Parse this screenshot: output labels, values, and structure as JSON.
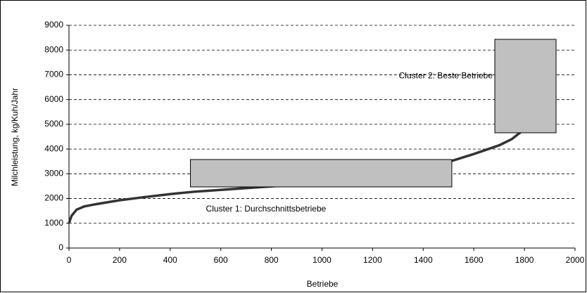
{
  "chart_data": {
    "type": "line",
    "xlabel": "Betriebe",
    "ylabel": "Milchleistung, kg/Kuh/Jahr",
    "x": [
      0,
      10,
      30,
      60,
      100,
      200,
      300,
      400,
      500,
      600,
      700,
      800,
      900,
      1000,
      1100,
      1200,
      1300,
      1400,
      1500,
      1600,
      1700,
      1750,
      1800
    ],
    "series": [
      {
        "color": "#333333",
        "values": [
          1000,
          1300,
          1550,
          1680,
          1760,
          1930,
          2060,
          2180,
          2280,
          2350,
          2420,
          2490,
          2560,
          2640,
          2730,
          2840,
          2980,
          3200,
          3480,
          3800,
          4150,
          4400,
          4800
        ]
      }
    ],
    "regions": [
      {
        "label": "Cluster 1: Durchschnittsbetriebe",
        "x": [
          480,
          1513
        ],
        "y": [
          2470,
          3577
        ],
        "color": "#c0c0c0"
      },
      {
        "label": "Cluster 2: Beste Betriebe",
        "x": [
          1683,
          1925
        ],
        "y": [
          4657,
          8433
        ],
        "color": "#c0c0c0"
      }
    ],
    "xlim": [
      0,
      2000
    ],
    "xticks": [
      0,
      200,
      400,
      600,
      800,
      1000,
      1200,
      1400,
      1600,
      1800,
      2000
    ],
    "ylim": [
      0,
      9000
    ],
    "yticks": [
      0,
      1000,
      2000,
      3000,
      4000,
      5000,
      6000,
      7000,
      8000,
      9000
    ],
    "grid": true
  }
}
